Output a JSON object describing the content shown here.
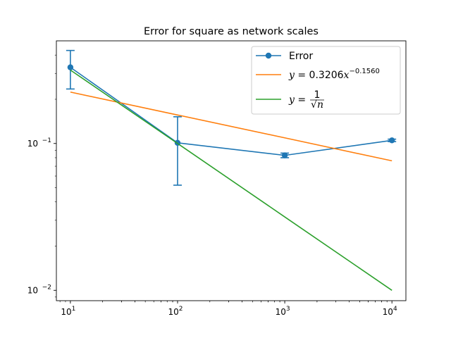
{
  "chart_data": {
    "type": "line",
    "title": "Error for square as network scales",
    "xlabel": "",
    "ylabel": "",
    "xscale": "log",
    "yscale": "log",
    "xlim": [
      7.4,
      13500
    ],
    "ylim": [
      0.0085,
      0.5
    ],
    "x_ticks": [
      {
        "value": 10,
        "base": "10",
        "exp": "1"
      },
      {
        "value": 100,
        "base": "10",
        "exp": "2"
      },
      {
        "value": 1000,
        "base": "10",
        "exp": "3"
      },
      {
        "value": 10000,
        "base": "10",
        "exp": "4"
      }
    ],
    "y_ticks": [
      {
        "value": 0.01,
        "base": "10",
        "exp": "−2"
      },
      {
        "value": 0.1,
        "base": "10",
        "exp": "−1"
      }
    ],
    "grid": false,
    "legend_position": "top-right",
    "series": [
      {
        "name": "Error",
        "color": "#1f77b4",
        "marker": "circle",
        "x": [
          10,
          100,
          1000,
          10000
        ],
        "y": [
          0.33,
          0.101,
          0.083,
          0.105
        ],
        "yerr_low": [
          0.235,
          0.052,
          0.08,
          0.103
        ],
        "yerr_high": [
          0.43,
          0.152,
          0.086,
          0.107
        ]
      },
      {
        "name": "y = 0.3206x^(−0.1560)",
        "legend_math": {
          "lhs": "y",
          "coef": "0.3206",
          "var": "x",
          "exp": "−0.1560"
        },
        "color": "#ff7f0e",
        "x": [
          10,
          100,
          1000,
          10000
        ],
        "y": [
          0.2239,
          0.1563,
          0.1092,
          0.0762
        ]
      },
      {
        "name": "y = 1/√n",
        "legend_math": {
          "lhs": "y",
          "num": "1",
          "den": "√n"
        },
        "color": "#2ca02c",
        "x": [
          10,
          100,
          1000,
          10000
        ],
        "y": [
          0.3162,
          0.1,
          0.03162,
          0.01
        ]
      }
    ]
  }
}
